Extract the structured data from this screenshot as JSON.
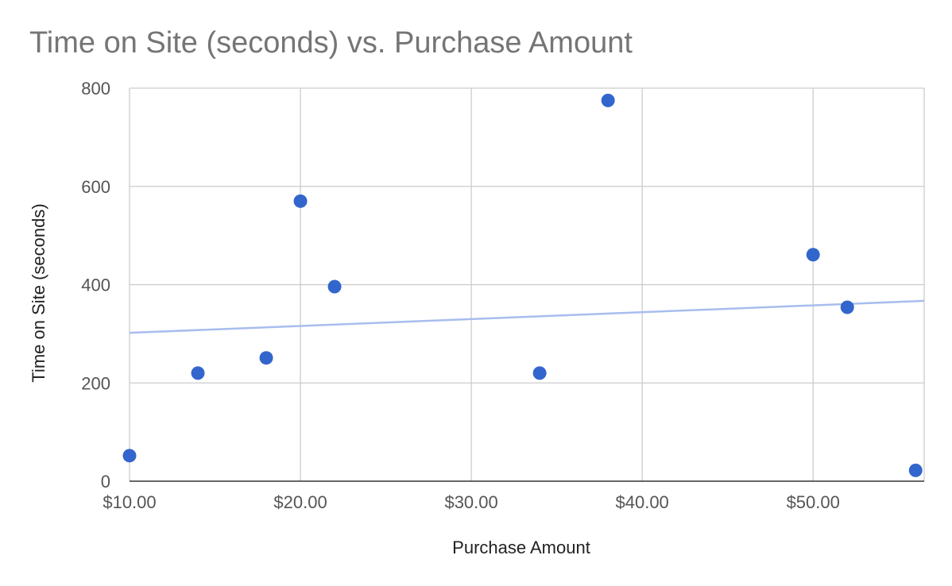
{
  "chart_data": {
    "type": "scatter",
    "title": "Time on Site (seconds) vs. Purchase Amount",
    "xlabel": "Purchase Amount",
    "ylabel": "Time on Site (seconds)",
    "xlim": [
      10,
      56.5
    ],
    "ylim": [
      0,
      800
    ],
    "grid": true,
    "x_ticks": [
      {
        "value": 10,
        "label": "$10.00"
      },
      {
        "value": 20,
        "label": "$20.00"
      },
      {
        "value": 30,
        "label": "$30.00"
      },
      {
        "value": 40,
        "label": "$40.00"
      },
      {
        "value": 50,
        "label": "$50.00"
      }
    ],
    "y_ticks": [
      {
        "value": 0,
        "label": "0"
      },
      {
        "value": 200,
        "label": "200"
      },
      {
        "value": 400,
        "label": "400"
      },
      {
        "value": 600,
        "label": "600"
      },
      {
        "value": 800,
        "label": "800"
      }
    ],
    "series": [
      {
        "name": "Time on Site (seconds)",
        "color": "#3366cc",
        "points": [
          {
            "x": 10,
            "y": 52
          },
          {
            "x": 14,
            "y": 220
          },
          {
            "x": 18,
            "y": 251
          },
          {
            "x": 20,
            "y": 570
          },
          {
            "x": 22,
            "y": 396
          },
          {
            "x": 34,
            "y": 220
          },
          {
            "x": 38,
            "y": 775
          },
          {
            "x": 50,
            "y": 461
          },
          {
            "x": 52,
            "y": 354
          },
          {
            "x": 56,
            "y": 22
          }
        ]
      }
    ],
    "trendline": {
      "type": "linear",
      "color": "#a8bdee",
      "start": {
        "x": 10,
        "y": 302
      },
      "end": {
        "x": 56.5,
        "y": 367
      }
    }
  }
}
